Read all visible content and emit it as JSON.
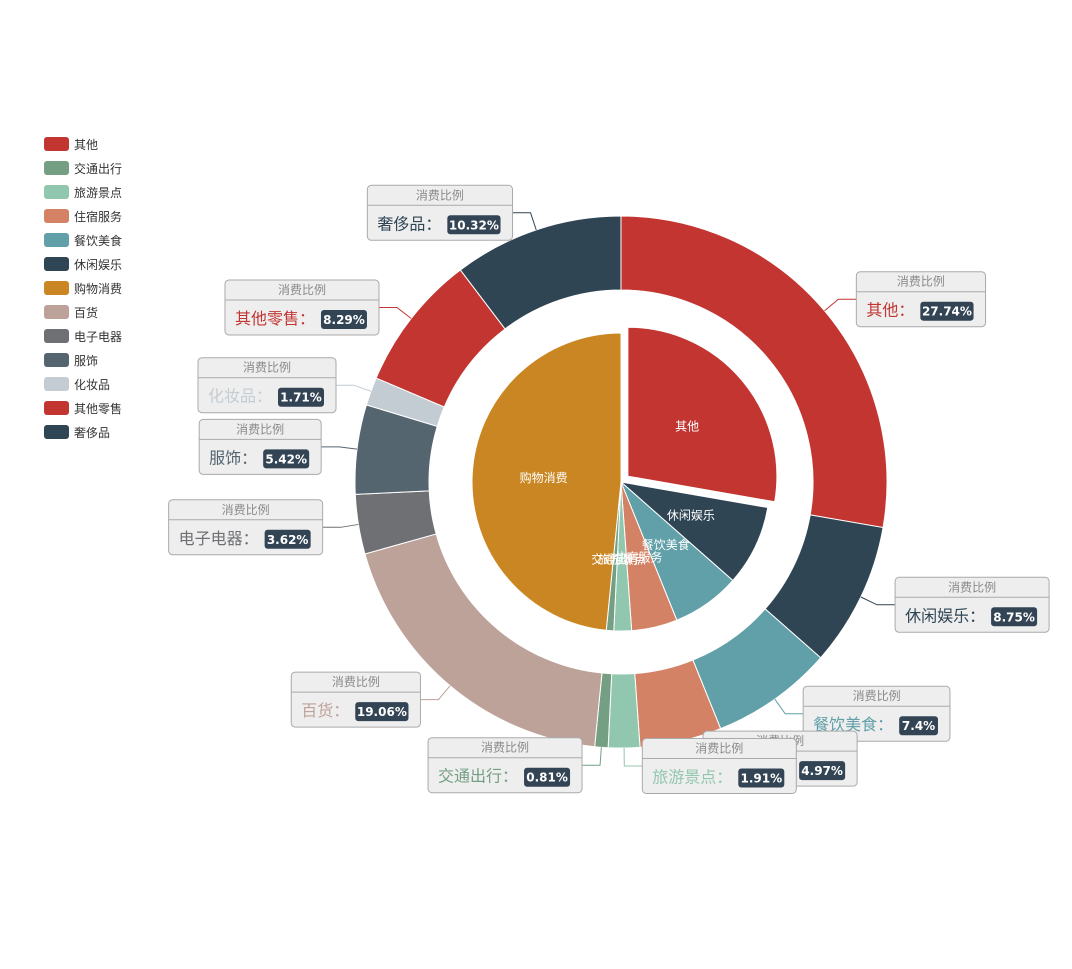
{
  "legend": {
    "items": [
      {
        "label": "其他",
        "color": "#c23531"
      },
      {
        "label": "交通出行",
        "color": "#749f83"
      },
      {
        "label": "旅游景点",
        "color": "#91c7ae"
      },
      {
        "label": "住宿服务",
        "color": "#d48265"
      },
      {
        "label": "餐饮美食",
        "color": "#61a0a8"
      },
      {
        "label": "休闲娱乐",
        "color": "#2f4554"
      },
      {
        "label": "购物消费",
        "color": "#ca8622"
      },
      {
        "label": "百货",
        "color": "#bda29a"
      },
      {
        "label": "电子电器",
        "color": "#6e7074"
      },
      {
        "label": "服饰",
        "color": "#546570"
      },
      {
        "label": "化妆品",
        "color": "#c4ccd3"
      },
      {
        "label": "其他零售",
        "color": "#c23531"
      },
      {
        "label": "奢侈品",
        "color": "#2f4554"
      }
    ]
  },
  "chart_data": {
    "type": "pie",
    "subtype": "nested-donut",
    "tooltip_title": "消费比例",
    "inner_ring": {
      "labels_shown": [
        "其他",
        "休闲娱乐",
        "餐饮美食",
        "住宿服务",
        "旅游景点",
        "交通出行",
        "购物消费"
      ],
      "slices": [
        {
          "name": "其他",
          "value": 27.74,
          "color": "#c23531",
          "selected": true
        },
        {
          "name": "休闲娱乐",
          "value": 8.75,
          "color": "#2f4554"
        },
        {
          "name": "餐饮美食",
          "value": 7.4,
          "color": "#61a0a8"
        },
        {
          "name": "住宿服务",
          "value": 4.97,
          "color": "#d48265"
        },
        {
          "name": "旅游景点",
          "value": 1.91,
          "color": "#91c7ae"
        },
        {
          "name": "交通出行",
          "value": 0.81,
          "color": "#749f83"
        },
        {
          "name": "购物消费",
          "value": 48.42,
          "color": "#ca8622"
        }
      ]
    },
    "outer_ring": {
      "slices": [
        {
          "name": "其他",
          "value": 27.74,
          "value_label": "27.74%",
          "color": "#c23531"
        },
        {
          "name": "休闲娱乐",
          "value": 8.75,
          "value_label": "8.75%",
          "color": "#2f4554"
        },
        {
          "name": "餐饮美食",
          "value": 7.4,
          "value_label": "7.4%",
          "color": "#61a0a8"
        },
        {
          "name": "住宿服务",
          "value": 4.97,
          "value_label": "4.97%",
          "color": "#d48265"
        },
        {
          "name": "旅游景点",
          "value": 1.91,
          "value_label": "1.91%",
          "color": "#91c7ae"
        },
        {
          "name": "交通出行",
          "value": 0.81,
          "value_label": "0.81%",
          "color": "#749f83"
        },
        {
          "name": "百货",
          "value": 19.06,
          "value_label": "19.06%",
          "color": "#bda29a"
        },
        {
          "name": "电子电器",
          "value": 3.62,
          "value_label": "3.62%",
          "color": "#6e7074"
        },
        {
          "name": "服饰",
          "value": 5.42,
          "value_label": "5.42%",
          "color": "#546570"
        },
        {
          "name": "化妆品",
          "value": 1.71,
          "value_label": "1.71%",
          "color": "#c4ccd3"
        },
        {
          "name": "其他零售",
          "value": 8.29,
          "value_label": "8.29%",
          "color": "#c23531"
        },
        {
          "name": "奢侈品",
          "value": 10.32,
          "value_label": "10.32%",
          "color": "#2f4554"
        }
      ]
    }
  }
}
